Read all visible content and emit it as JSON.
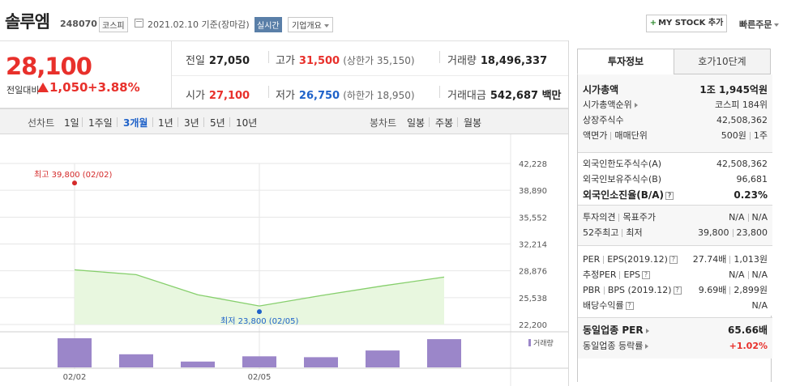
{
  "header": {
    "stock_name": "솔루엠",
    "stock_code": "248070",
    "market": "코스피",
    "date": "2021.02.10 기준(장마감)",
    "realtime_label": "실시간",
    "company_info_label": "기업개요",
    "my_stock_label": "MY STOCK 추가",
    "quick_order_label": "빠른주문"
  },
  "price": {
    "current": "28,100",
    "change_label": "전일대비",
    "change": "1,050",
    "change_rate": "+3.88%"
  },
  "quote": {
    "prev_close_label": "전일",
    "prev_close": "27,050",
    "high_label": "고가",
    "high": "31,500",
    "upper_limit": "(상한가 35,150)",
    "volume_label": "거래량",
    "volume": "18,496,337",
    "open_label": "시가",
    "open": "27,100",
    "low_label": "저가",
    "low": "26,750",
    "lower_limit": "(하한가 18,950)",
    "amount_label": "거래대금",
    "amount": "542,687 백만"
  },
  "chart_tabs": {
    "line_chart_label": "선차트",
    "periods": [
      "1일",
      "1주일",
      "3개월",
      "1년",
      "3년",
      "5년",
      "10년"
    ],
    "active_period": "3개월",
    "candle_label": "봉차트",
    "candles": [
      "일봉",
      "주봉",
      "월봉"
    ]
  },
  "chart_data": {
    "type": "line",
    "x": [
      "02/02",
      "02/03",
      "02/04",
      "02/05",
      "02/08",
      "02/09",
      "02/10"
    ],
    "values": [
      29000,
      28400,
      25900,
      24500,
      25800,
      27000,
      28100
    ],
    "volume": [
      1.0,
      0.45,
      0.2,
      0.38,
      0.35,
      0.58,
      0.97
    ],
    "ylim": [
      22200,
      42228
    ],
    "yticks": [
      "42,228",
      "38,890",
      "35,552",
      "32,214",
      "28,876",
      "25,538",
      "22,200"
    ],
    "xtick_labels": [
      "02/02",
      "02/05"
    ],
    "high_label": "최고 39,800 (02/02)",
    "high_value": 39800,
    "low_label": "최저 23,800 (02/05)",
    "low_value": 23800,
    "volume_legend": "거래량",
    "colors": {
      "line": "#86cf6c",
      "fill": "#e8f7df",
      "volume": "#9b86c9",
      "high": "#d42a2a",
      "low": "#1f62c9"
    }
  },
  "right_panel": {
    "tabs": [
      "투자정보",
      "호가10단계"
    ],
    "market_cap_label": "시가총액",
    "market_cap": "1조 1,945억원",
    "market_cap_rank_label": "시가총액순위",
    "market_cap_rank": "코스피 184위",
    "shares_label": "상장주식수",
    "shares": "42,508,362",
    "face_value_label": "액면가",
    "trade_unit_label": "매매단위",
    "face_value": "500원",
    "trade_unit": "1주",
    "foreign_limit_label": "외국인한도주식수(A)",
    "foreign_limit": "42,508,362",
    "foreign_hold_label": "외국인보유주식수(B)",
    "foreign_hold": "96,681",
    "foreign_ratio_label": "외국인소진율(B/A)",
    "foreign_ratio": "0.23%",
    "opinion_label": "투자의견",
    "target_label": "목표주가",
    "opinion": "N/A",
    "target": "N/A",
    "week52_high_label": "52주최고",
    "week52_low_label": "최저",
    "week52_high": "39,800",
    "week52_low": "23,800",
    "per_label": "PER",
    "eps_label": "EPS(2019.12)",
    "per": "27.74배",
    "eps": "1,013원",
    "est_per_label": "추정PER",
    "est_eps_label": "EPS",
    "est_per": "N/A",
    "est_eps": "N/A",
    "pbr_label": "PBR",
    "bps_label": "BPS (2019.12)",
    "pbr": "9.69배",
    "bps": "2,899원",
    "dividend_label": "배당수익률",
    "dividend": "N/A",
    "sector_per_label": "동일업종 PER",
    "sector_per": "65.66배",
    "sector_rate_label": "동일업종 등락률",
    "sector_rate": "+1.02%"
  }
}
